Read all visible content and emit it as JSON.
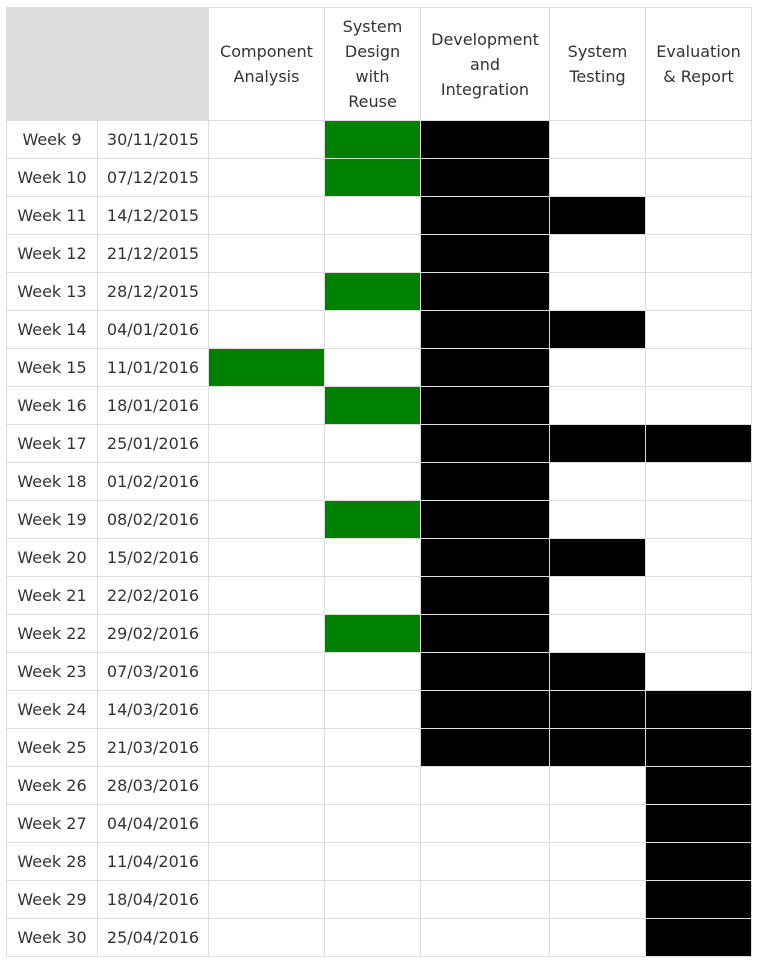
{
  "colors": {
    "green": "#008000",
    "black": "#000000",
    "header_bg": "#dddddd",
    "border": "#dddddd"
  },
  "table": {
    "columns": [
      {
        "key": "component_analysis",
        "label": "Component Analysis",
        "lines": [
          "Component",
          "Analysis"
        ],
        "fill": "green"
      },
      {
        "key": "system_design_with_reuse",
        "label": "System Design with Reuse",
        "lines": [
          "System",
          "Design",
          "with",
          "Reuse"
        ],
        "fill": "green"
      },
      {
        "key": "development_and_integration",
        "label": "Development and Integration",
        "lines": [
          "Development",
          "and",
          "Integration"
        ],
        "fill": "black"
      },
      {
        "key": "system_testing",
        "label": "System Testing",
        "lines": [
          "System",
          "Testing"
        ],
        "fill": "black"
      },
      {
        "key": "evaluation_and_report",
        "label": "Evaluation & Report",
        "lines": [
          "Evaluation",
          "& Report"
        ],
        "fill": "black"
      }
    ],
    "rows": [
      {
        "week": "Week 9",
        "date": "30/11/2015",
        "active": [
          0,
          1,
          1,
          0,
          0
        ]
      },
      {
        "week": "Week 10",
        "date": "07/12/2015",
        "active": [
          0,
          1,
          1,
          0,
          0
        ]
      },
      {
        "week": "Week 11",
        "date": "14/12/2015",
        "active": [
          0,
          0,
          1,
          1,
          0
        ]
      },
      {
        "week": "Week 12",
        "date": "21/12/2015",
        "active": [
          0,
          0,
          1,
          0,
          0
        ]
      },
      {
        "week": "Week 13",
        "date": "28/12/2015",
        "active": [
          0,
          1,
          1,
          0,
          0
        ]
      },
      {
        "week": "Week 14",
        "date": "04/01/2016",
        "active": [
          0,
          0,
          1,
          1,
          0
        ]
      },
      {
        "week": "Week 15",
        "date": "11/01/2016",
        "active": [
          1,
          0,
          1,
          0,
          0
        ]
      },
      {
        "week": "Week 16",
        "date": "18/01/2016",
        "active": [
          0,
          1,
          1,
          0,
          0
        ]
      },
      {
        "week": "Week 17",
        "date": "25/01/2016",
        "active": [
          0,
          0,
          1,
          1,
          1
        ]
      },
      {
        "week": "Week 18",
        "date": "01/02/2016",
        "active": [
          0,
          0,
          1,
          0,
          0
        ]
      },
      {
        "week": "Week 19",
        "date": "08/02/2016",
        "active": [
          0,
          1,
          1,
          0,
          0
        ]
      },
      {
        "week": "Week 20",
        "date": "15/02/2016",
        "active": [
          0,
          0,
          1,
          1,
          0
        ]
      },
      {
        "week": "Week 21",
        "date": "22/02/2016",
        "active": [
          0,
          0,
          1,
          0,
          0
        ]
      },
      {
        "week": "Week 22",
        "date": "29/02/2016",
        "active": [
          0,
          1,
          1,
          0,
          0
        ]
      },
      {
        "week": "Week 23",
        "date": "07/03/2016",
        "active": [
          0,
          0,
          1,
          1,
          0
        ]
      },
      {
        "week": "Week 24",
        "date": "14/03/2016",
        "active": [
          0,
          0,
          1,
          1,
          1
        ]
      },
      {
        "week": "Week 25",
        "date": "21/03/2016",
        "active": [
          0,
          0,
          1,
          1,
          1
        ]
      },
      {
        "week": "Week 26",
        "date": "28/03/2016",
        "active": [
          0,
          0,
          0,
          0,
          1
        ]
      },
      {
        "week": "Week 27",
        "date": "04/04/2016",
        "active": [
          0,
          0,
          0,
          0,
          1
        ]
      },
      {
        "week": "Week 28",
        "date": "11/04/2016",
        "active": [
          0,
          0,
          0,
          0,
          1
        ]
      },
      {
        "week": "Week 29",
        "date": "18/04/2016",
        "active": [
          0,
          0,
          0,
          0,
          1
        ]
      },
      {
        "week": "Week 30",
        "date": "25/04/2016",
        "active": [
          0,
          0,
          0,
          0,
          1
        ]
      }
    ]
  }
}
